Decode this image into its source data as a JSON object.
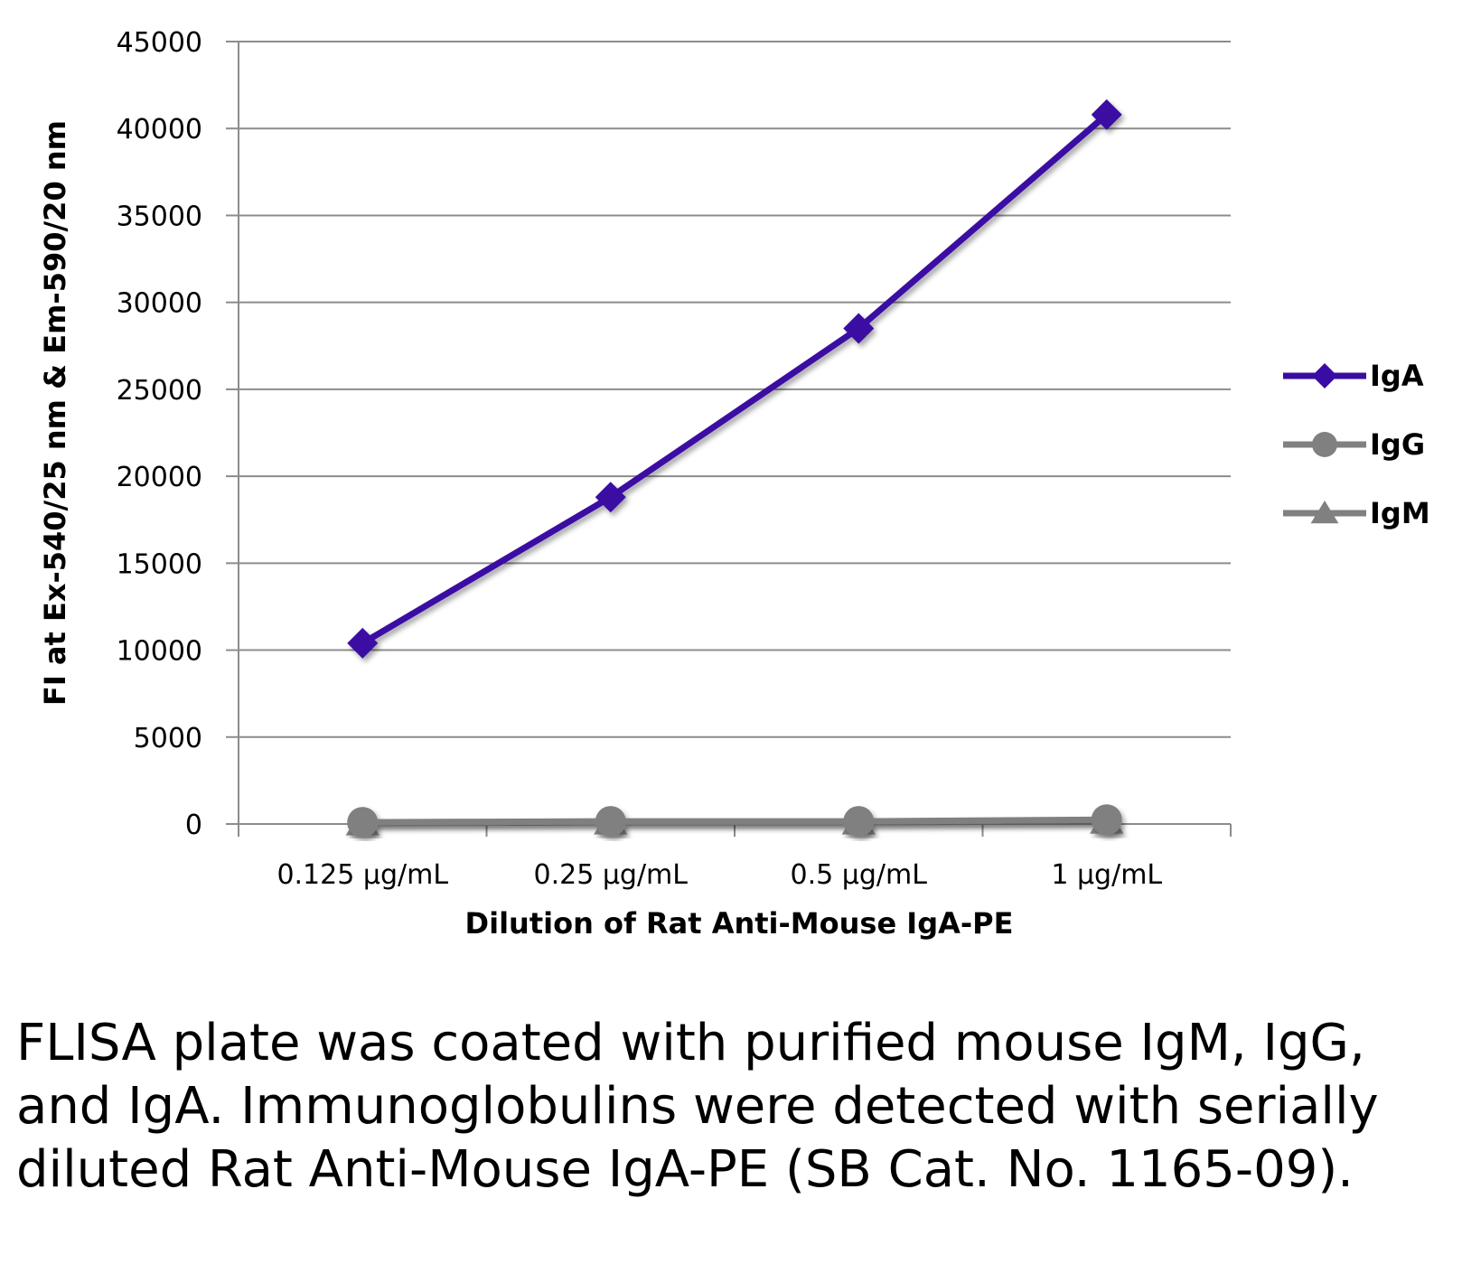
{
  "chart_data": {
    "type": "line",
    "title": "",
    "xlabel": "Dilution of Rat Anti-Mouse IgA-PE",
    "ylabel": "FI at Ex-540/25 nm & Em-590/20 nm",
    "categories": [
      "0.125 µg/mL",
      "0.25 µg/mL",
      "0.5 µg/mL",
      "1 µg/mL"
    ],
    "ylim": [
      0,
      45000
    ],
    "yticks": [
      0,
      5000,
      10000,
      15000,
      20000,
      25000,
      30000,
      35000,
      40000,
      45000
    ],
    "grid": true,
    "legend_position": "right",
    "series": [
      {
        "name": "IgA",
        "marker": "diamond",
        "color": "#3a0ca3",
        "values": [
          10400,
          18800,
          28500,
          40800
        ]
      },
      {
        "name": "IgG",
        "marker": "circle",
        "color": "#808080",
        "values": [
          100,
          150,
          150,
          250
        ]
      },
      {
        "name": "IgM",
        "marker": "triangle",
        "color": "#808080",
        "values": [
          50,
          100,
          100,
          150
        ]
      }
    ]
  },
  "caption": "FLISA plate was coated with purified mouse IgM, IgG, and IgA.  Immunoglobulins were detected with serially diluted Rat Anti-Mouse IgA-PE (SB Cat. No. 1165-09)."
}
